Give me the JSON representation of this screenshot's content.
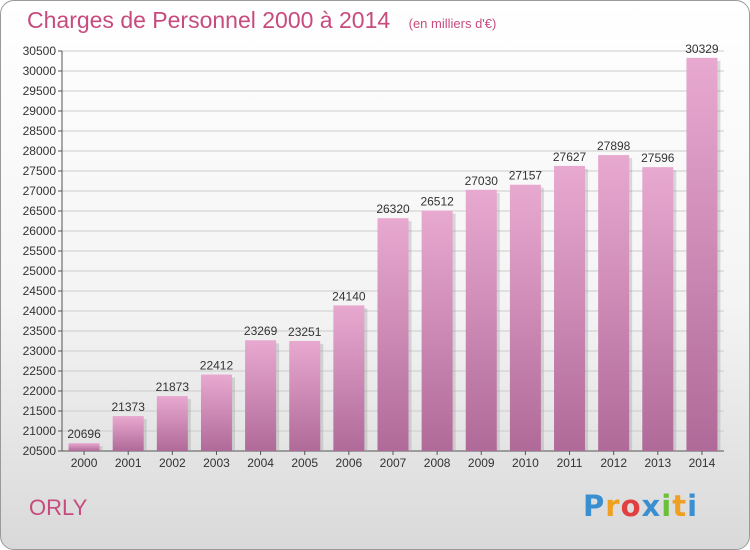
{
  "header": {
    "title": "Charges de Personnel 2000 à 2014",
    "subtitle": "(en milliers d'€)"
  },
  "footer": {
    "commune": "ORLY",
    "logo_text": "Proxiti"
  },
  "colors": {
    "title": "#c74b7d",
    "bar_light": "#e8a9d0",
    "bar_dark": "#b06a99",
    "grid": "#cccccc"
  },
  "chart_data": {
    "type": "bar",
    "title": "Charges de Personnel 2000 à 2014",
    "subtitle": "(en milliers d'€)",
    "xlabel": "",
    "ylabel": "",
    "categories": [
      "2000",
      "2001",
      "2002",
      "2003",
      "2004",
      "2005",
      "2006",
      "2007",
      "2008",
      "2009",
      "2010",
      "2011",
      "2012",
      "2013",
      "2014"
    ],
    "values": [
      20696,
      21373,
      21873,
      22412,
      23269,
      23251,
      24140,
      26320,
      26512,
      27030,
      27157,
      27627,
      27898,
      27596,
      30329
    ],
    "ylim": [
      20500,
      30500
    ],
    "ytick_step": 500,
    "grid": true,
    "legend": "none"
  }
}
